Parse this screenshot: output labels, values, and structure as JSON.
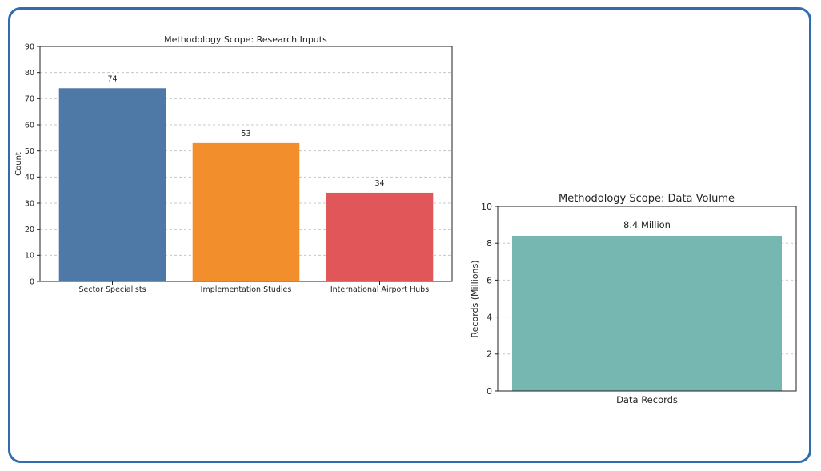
{
  "chart_data": [
    {
      "type": "bar",
      "title": "Methodology Scope: Research Inputs",
      "xlabel": "",
      "ylabel": "Count",
      "ylim": [
        0,
        90
      ],
      "yticks": [
        0,
        10,
        20,
        30,
        40,
        50,
        60,
        70,
        80,
        90
      ],
      "grid": true,
      "categories": [
        "Sector Specialists",
        "Implementation Studies",
        "International Airport Hubs"
      ],
      "values": [
        74,
        53,
        34
      ],
      "data_labels": [
        "74",
        "53",
        "34"
      ],
      "colors": [
        "#4e79a7",
        "#f28e2b",
        "#e15759"
      ]
    },
    {
      "type": "bar",
      "title": "Methodology Scope: Data Volume",
      "xlabel": "",
      "ylabel": "Records (Millions)",
      "ylim": [
        0,
        10
      ],
      "yticks": [
        0,
        2,
        4,
        6,
        8,
        10
      ],
      "grid": true,
      "categories": [
        "Data Records"
      ],
      "values": [
        8.4
      ],
      "data_labels": [
        "8.4 Million"
      ],
      "colors": [
        "#76b7b2"
      ]
    }
  ]
}
